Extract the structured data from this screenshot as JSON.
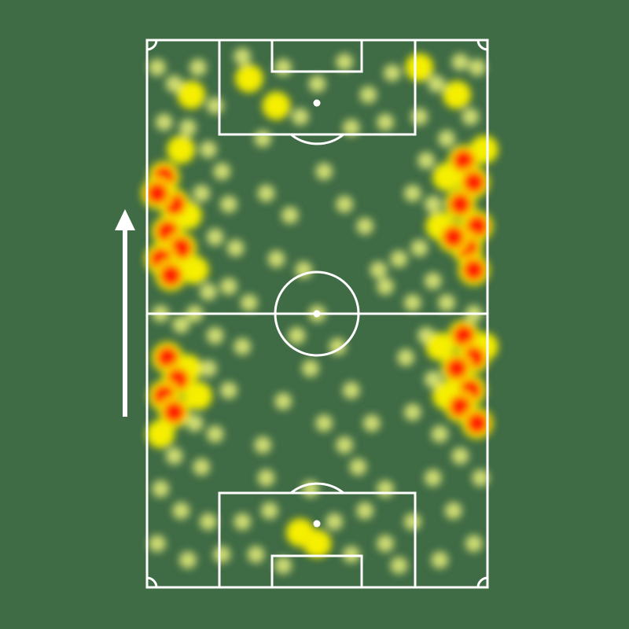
{
  "colors": {
    "background": "#3f6b45",
    "lines": "#ffffff",
    "low": "#e6ef7a",
    "mid": "#f5ee00",
    "high": "#ff2200"
  },
  "chart_data": {
    "type": "heatmap",
    "title": "",
    "xlabel": "",
    "ylabel": "",
    "xlim": [
      0,
      100
    ],
    "ylim": [
      0,
      100
    ],
    "grid": false,
    "direction_of_play": "up",
    "intensity_scale": {
      "1": "low",
      "2": "medium",
      "3": "high"
    },
    "points": [
      [
        5,
        75,
        3
      ],
      [
        8,
        70,
        3
      ],
      [
        6,
        65,
        3
      ],
      [
        10,
        62,
        3
      ],
      [
        4,
        60,
        3
      ],
      [
        7,
        57,
        3
      ],
      [
        3,
        72,
        3
      ],
      [
        93,
        78,
        3
      ],
      [
        96,
        74,
        3
      ],
      [
        92,
        70,
        3
      ],
      [
        97,
        66,
        3
      ],
      [
        94,
        62,
        3
      ],
      [
        90,
        64,
        3
      ],
      [
        96,
        58,
        3
      ],
      [
        6,
        42,
        3
      ],
      [
        9,
        38,
        3
      ],
      [
        5,
        35,
        3
      ],
      [
        8,
        32,
        3
      ],
      [
        93,
        46,
        3
      ],
      [
        96,
        42,
        3
      ],
      [
        91,
        40,
        3
      ],
      [
        95,
        36,
        3
      ],
      [
        92,
        33,
        3
      ],
      [
        97,
        30,
        3
      ],
      [
        12,
        68,
        2
      ],
      [
        14,
        58,
        2
      ],
      [
        10,
        80,
        2
      ],
      [
        88,
        75,
        2
      ],
      [
        86,
        66,
        2
      ],
      [
        99,
        80,
        2
      ],
      [
        12,
        40,
        2
      ],
      [
        15,
        35,
        2
      ],
      [
        4,
        28,
        2
      ],
      [
        86,
        44,
        2
      ],
      [
        88,
        35,
        2
      ],
      [
        99,
        44,
        2
      ],
      [
        13,
        90,
        2
      ],
      [
        91,
        90,
        2
      ],
      [
        45,
        10,
        2
      ],
      [
        50,
        8,
        2
      ],
      [
        80,
        95,
        2
      ],
      [
        30,
        93,
        2
      ],
      [
        38,
        88,
        2
      ],
      [
        3,
        95,
        1
      ],
      [
        8,
        92,
        1
      ],
      [
        15,
        95,
        1
      ],
      [
        20,
        88,
        1
      ],
      [
        5,
        85,
        1
      ],
      [
        12,
        84,
        1
      ],
      [
        18,
        80,
        1
      ],
      [
        22,
        76,
        1
      ],
      [
        16,
        72,
        1
      ],
      [
        24,
        70,
        1
      ],
      [
        20,
        64,
        1
      ],
      [
        26,
        62,
        1
      ],
      [
        18,
        54,
        1
      ],
      [
        24,
        55,
        1
      ],
      [
        30,
        52,
        1
      ],
      [
        14,
        50,
        1
      ],
      [
        4,
        50,
        1
      ],
      [
        10,
        48,
        1
      ],
      [
        20,
        46,
        1
      ],
      [
        28,
        44,
        1
      ],
      [
        18,
        40,
        1
      ],
      [
        24,
        36,
        1
      ],
      [
        14,
        30,
        1
      ],
      [
        20,
        28,
        1
      ],
      [
        8,
        24,
        1
      ],
      [
        16,
        22,
        1
      ],
      [
        4,
        18,
        1
      ],
      [
        10,
        14,
        1
      ],
      [
        18,
        12,
        1
      ],
      [
        3,
        8,
        1
      ],
      [
        12,
        5,
        1
      ],
      [
        22,
        6,
        1
      ],
      [
        28,
        12,
        1
      ],
      [
        32,
        6,
        1
      ],
      [
        36,
        14,
        1
      ],
      [
        40,
        4,
        1
      ],
      [
        55,
        12,
        1
      ],
      [
        60,
        6,
        1
      ],
      [
        64,
        14,
        1
      ],
      [
        70,
        8,
        1
      ],
      [
        74,
        4,
        1
      ],
      [
        35,
        20,
        1
      ],
      [
        48,
        18,
        1
      ],
      [
        62,
        22,
        1
      ],
      [
        70,
        18,
        1
      ],
      [
        97,
        95,
        1
      ],
      [
        92,
        96,
        1
      ],
      [
        85,
        92,
        1
      ],
      [
        80,
        86,
        1
      ],
      [
        95,
        86,
        1
      ],
      [
        88,
        82,
        1
      ],
      [
        82,
        78,
        1
      ],
      [
        78,
        72,
        1
      ],
      [
        84,
        70,
        1
      ],
      [
        80,
        62,
        1
      ],
      [
        74,
        60,
        1
      ],
      [
        84,
        56,
        1
      ],
      [
        78,
        52,
        1
      ],
      [
        70,
        55,
        1
      ],
      [
        88,
        52,
        1
      ],
      [
        96,
        50,
        1
      ],
      [
        82,
        46,
        1
      ],
      [
        76,
        42,
        1
      ],
      [
        84,
        38,
        1
      ],
      [
        78,
        32,
        1
      ],
      [
        86,
        28,
        1
      ],
      [
        92,
        24,
        1
      ],
      [
        98,
        20,
        1
      ],
      [
        84,
        20,
        1
      ],
      [
        90,
        14,
        1
      ],
      [
        96,
        8,
        1
      ],
      [
        86,
        5,
        1
      ],
      [
        78,
        12,
        1
      ],
      [
        28,
        97,
        1
      ],
      [
        40,
        95,
        1
      ],
      [
        50,
        92,
        1
      ],
      [
        58,
        96,
        1
      ],
      [
        65,
        90,
        1
      ],
      [
        72,
        94,
        1
      ],
      [
        45,
        86,
        1
      ],
      [
        60,
        84,
        1
      ],
      [
        70,
        85,
        1
      ],
      [
        34,
        82,
        1
      ],
      [
        35,
        72,
        1
      ],
      [
        42,
        68,
        1
      ],
      [
        52,
        76,
        1
      ],
      [
        58,
        70,
        1
      ],
      [
        64,
        66,
        1
      ],
      [
        38,
        60,
        1
      ],
      [
        46,
        58,
        1
      ],
      [
        68,
        58,
        1
      ],
      [
        50,
        50,
        1
      ],
      [
        44,
        46,
        1
      ],
      [
        56,
        44,
        1
      ],
      [
        48,
        40,
        1
      ],
      [
        60,
        36,
        1
      ],
      [
        40,
        34,
        1
      ],
      [
        52,
        30,
        1
      ],
      [
        66,
        30,
        1
      ],
      [
        34,
        26,
        1
      ],
      [
        58,
        26,
        1
      ]
    ]
  }
}
